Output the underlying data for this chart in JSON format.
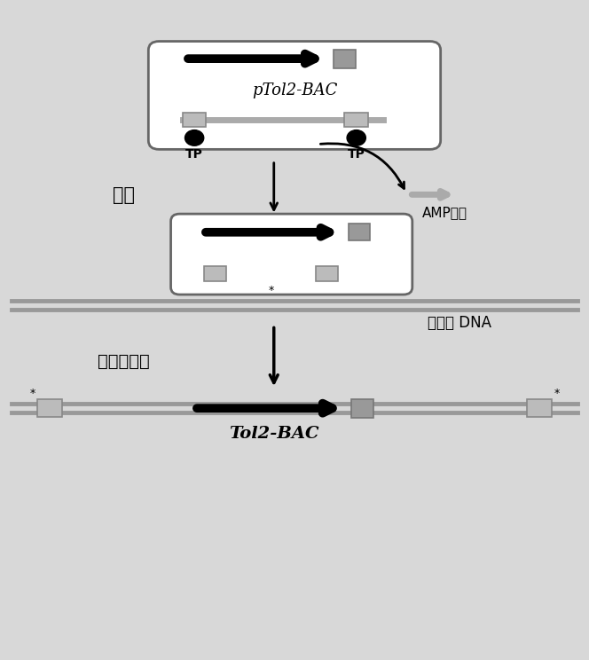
{
  "bg_color": "#d8d8d8",
  "pTol2_label": "pTol2-BAC",
  "Tol2_label": "Tol2-BAC",
  "TP_label1": "TP",
  "TP_label2": "TP",
  "cut_label": "切除",
  "AMP_label": "AMP抗性",
  "genome_label": "基因组 DNA",
  "integrate_label": "整合基因组",
  "arrow_color": "#333333",
  "gray_color": "#aaaaaa",
  "box_fc": "#bbbbbb",
  "box_ec": "#888888",
  "line_color": "#999999"
}
